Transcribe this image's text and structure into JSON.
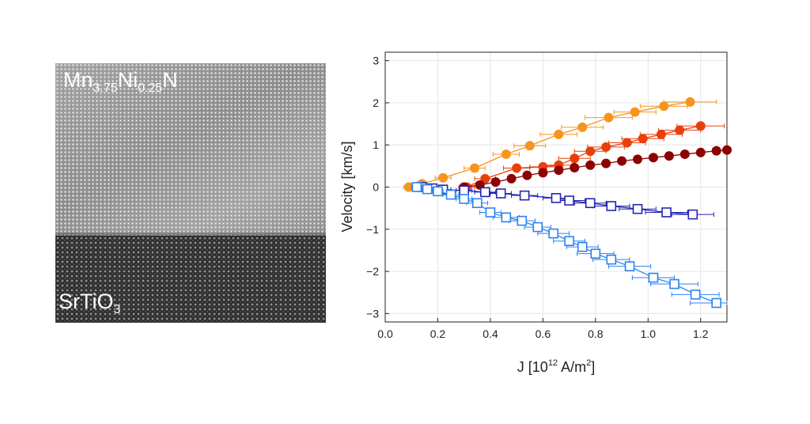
{
  "micrograph": {
    "film_label": {
      "base": "Mn",
      "sub1": "3.75",
      "mid": "Ni",
      "sub2": "0.25",
      "end": "N"
    },
    "substrate_label": {
      "base": "SrTiO",
      "sub": "3"
    }
  },
  "chart_data": {
    "type": "scatter",
    "xlabel": {
      "prefix": "J [10",
      "sup1": "12",
      "mid": " A/m",
      "sup2": "2",
      "suffix": "]"
    },
    "ylabel": "Velocity [km/s]",
    "xlim": [
      0.0,
      1.3
    ],
    "ylim": [
      -3.2,
      3.2
    ],
    "xticks": [
      "0.0",
      "0.2",
      "0.4",
      "0.6",
      "0.8",
      "1.0",
      "1.2"
    ],
    "yticks": [
      "3",
      "2",
      "1",
      "0",
      "−1",
      "−2",
      "−3"
    ],
    "grid": true,
    "series": [
      {
        "color": "#f7941d",
        "marker": "filled-circle",
        "x": [
          0.09,
          0.14,
          0.22,
          0.34,
          0.46,
          0.55,
          0.66,
          0.75,
          0.85,
          0.95,
          1.06,
          1.16
        ],
        "y": [
          0.0,
          0.08,
          0.22,
          0.45,
          0.78,
          0.98,
          1.25,
          1.42,
          1.65,
          1.78,
          1.92,
          2.02
        ],
        "xerr": [
          0.02,
          0.02,
          0.03,
          0.04,
          0.05,
          0.06,
          0.07,
          0.08,
          0.09,
          0.08,
          0.09,
          0.1
        ]
      },
      {
        "color": "#e8400c",
        "marker": "filled-circle",
        "x": [
          0.31,
          0.38,
          0.5,
          0.6,
          0.66,
          0.72,
          0.78,
          0.84,
          0.92,
          0.98,
          1.05,
          1.12,
          1.2
        ],
        "y": [
          0.0,
          0.2,
          0.45,
          0.48,
          0.52,
          0.68,
          0.85,
          0.95,
          1.05,
          1.15,
          1.25,
          1.35,
          1.45
        ],
        "xerr": [
          0.03,
          0.04,
          0.05,
          0.05,
          0.05,
          0.06,
          0.06,
          0.07,
          0.07,
          0.08,
          0.08,
          0.08,
          0.09
        ]
      },
      {
        "color": "#8b0000",
        "marker": "filled-circle",
        "x": [
          0.3,
          0.36,
          0.42,
          0.48,
          0.54,
          0.6,
          0.66,
          0.72,
          0.78,
          0.84,
          0.9,
          0.96,
          1.02,
          1.08,
          1.14,
          1.2,
          1.26,
          1.3
        ],
        "y": [
          0.0,
          0.05,
          0.12,
          0.2,
          0.28,
          0.34,
          0.4,
          0.46,
          0.52,
          0.56,
          0.62,
          0.66,
          0.7,
          0.74,
          0.78,
          0.82,
          0.86,
          0.88
        ],
        "xerr": []
      },
      {
        "color": "#2424b4",
        "marker": "open-square",
        "x": [
          0.14,
          0.18,
          0.22,
          0.3,
          0.38,
          0.44,
          0.53,
          0.65,
          0.7,
          0.78,
          0.86,
          0.96,
          1.07,
          1.17
        ],
        "y": [
          0.0,
          -0.03,
          -0.06,
          -0.08,
          -0.12,
          -0.15,
          -0.2,
          -0.26,
          -0.32,
          -0.38,
          -0.45,
          -0.52,
          -0.6,
          -0.65
        ],
        "xerr": [
          0.02,
          0.02,
          0.03,
          0.03,
          0.04,
          0.04,
          0.05,
          0.05,
          0.06,
          0.06,
          0.07,
          0.07,
          0.08,
          0.08
        ]
      },
      {
        "color": "#2b83f0",
        "marker": "open-square",
        "x": [
          0.12,
          0.16,
          0.2,
          0.25,
          0.3,
          0.35,
          0.4,
          0.46,
          0.52,
          0.58,
          0.64,
          0.7,
          0.75,
          0.8,
          0.86,
          0.93,
          1.02,
          1.1,
          1.18,
          1.26
        ],
        "y": [
          0.0,
          -0.05,
          -0.1,
          -0.18,
          -0.28,
          -0.38,
          -0.6,
          -0.72,
          -0.8,
          -0.95,
          -1.1,
          -1.28,
          -1.42,
          -1.58,
          -1.72,
          -1.88,
          -2.15,
          -2.3,
          -2.55,
          -2.75
        ],
        "xerr": [
          0.02,
          0.02,
          0.02,
          0.03,
          0.03,
          0.04,
          0.04,
          0.05,
          0.05,
          0.05,
          0.06,
          0.06,
          0.06,
          0.07,
          0.07,
          0.08,
          0.08,
          0.09,
          0.09,
          0.1
        ]
      }
    ]
  }
}
